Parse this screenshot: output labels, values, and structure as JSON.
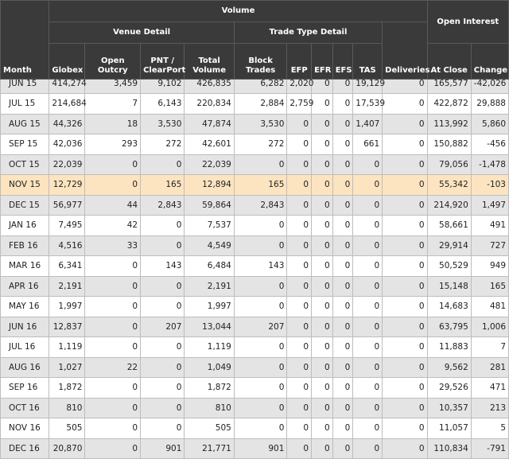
{
  "headers": {
    "volume": "Volume",
    "open_interest": "Open Interest",
    "venue_detail": "Venue Detail",
    "trade_type_detail": "Trade Type Detail",
    "columns": [
      "Month",
      "Globex",
      "Open Outcry",
      "PNT / ClearPort",
      "Total Volume",
      "Block Trades",
      "EFP",
      "EFR",
      "EFS",
      "TAS",
      "Deliveries",
      "At Close",
      "Change"
    ]
  },
  "rows": [
    [
      "JUN 15",
      "414,274",
      "3,459",
      "9,102",
      "426,835",
      "6,282",
      "2,020",
      "0",
      "0",
      "19,129",
      "0",
      "165,577",
      "-42,026"
    ],
    [
      "JUL 15",
      "214,684",
      "7",
      "6,143",
      "220,834",
      "2,884",
      "2,759",
      "0",
      "0",
      "17,539",
      "0",
      "422,872",
      "29,888"
    ],
    [
      "AUG 15",
      "44,326",
      "18",
      "3,530",
      "47,874",
      "3,530",
      "0",
      "0",
      "0",
      "1,407",
      "0",
      "113,992",
      "5,860"
    ],
    [
      "SEP 15",
      "42,036",
      "293",
      "272",
      "42,601",
      "272",
      "0",
      "0",
      "0",
      "661",
      "0",
      "150,882",
      "-456"
    ],
    [
      "OCT 15",
      "22,039",
      "0",
      "0",
      "22,039",
      "0",
      "0",
      "0",
      "0",
      "0",
      "0",
      "79,056",
      "-1,478"
    ],
    [
      "NOV 15",
      "12,729",
      "0",
      "165",
      "12,894",
      "165",
      "0",
      "0",
      "0",
      "0",
      "0",
      "55,342",
      "-103"
    ],
    [
      "DEC 15",
      "56,977",
      "44",
      "2,843",
      "59,864",
      "2,843",
      "0",
      "0",
      "0",
      "0",
      "0",
      "214,920",
      "1,497"
    ],
    [
      "JAN 16",
      "7,495",
      "42",
      "0",
      "7,537",
      "0",
      "0",
      "0",
      "0",
      "0",
      "0",
      "58,661",
      "491"
    ],
    [
      "FEB 16",
      "4,516",
      "33",
      "0",
      "4,549",
      "0",
      "0",
      "0",
      "0",
      "0",
      "0",
      "29,914",
      "727"
    ],
    [
      "MAR 16",
      "6,341",
      "0",
      "143",
      "6,484",
      "143",
      "0",
      "0",
      "0",
      "0",
      "0",
      "50,529",
      "949"
    ],
    [
      "APR 16",
      "2,191",
      "0",
      "0",
      "2,191",
      "0",
      "0",
      "0",
      "0",
      "0",
      "0",
      "15,148",
      "165"
    ],
    [
      "MAY 16",
      "1,997",
      "0",
      "0",
      "1,997",
      "0",
      "0",
      "0",
      "0",
      "0",
      "0",
      "14,683",
      "481"
    ],
    [
      "JUN 16",
      "12,837",
      "0",
      "207",
      "13,044",
      "207",
      "0",
      "0",
      "0",
      "0",
      "0",
      "63,795",
      "1,006"
    ],
    [
      "JUL 16",
      "1,119",
      "0",
      "0",
      "1,119",
      "0",
      "0",
      "0",
      "0",
      "0",
      "0",
      "11,883",
      "7"
    ],
    [
      "AUG 16",
      "1,027",
      "22",
      "0",
      "1,049",
      "0",
      "0",
      "0",
      "0",
      "0",
      "0",
      "9,562",
      "281"
    ],
    [
      "SEP 16",
      "1,872",
      "0",
      "0",
      "1,872",
      "0",
      "0",
      "0",
      "0",
      "0",
      "0",
      "29,526",
      "471"
    ],
    [
      "OCT 16",
      "810",
      "0",
      "0",
      "810",
      "0",
      "0",
      "0",
      "0",
      "0",
      "0",
      "10,357",
      "213"
    ],
    [
      "NOV 16",
      "505",
      "0",
      "0",
      "505",
      "0",
      "0",
      "0",
      "0",
      "0",
      "0",
      "11,057",
      "5"
    ],
    [
      "DEC 16",
      "20,870",
      "0",
      "901",
      "21,771",
      "901",
      "0",
      "0",
      "0",
      "0",
      "0",
      "110,834",
      "-791"
    ]
  ],
  "highlight_month": "NOV 15",
  "colors": {
    "header_bg": "#3a3a3a",
    "row_alt": "#e4e4e4",
    "highlight": "#fce4c0"
  }
}
